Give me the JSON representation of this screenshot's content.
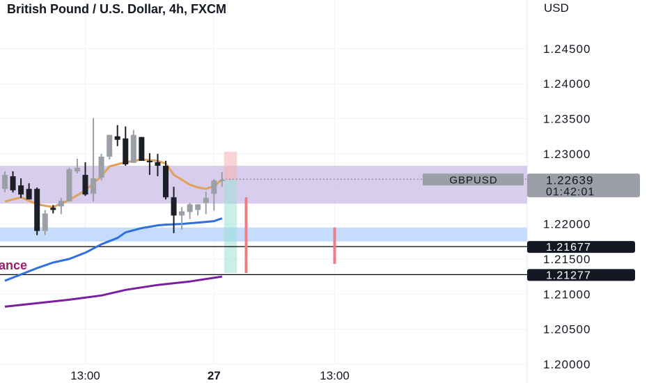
{
  "title": "British Pound / U.S. Dollar, 4h, FXCM",
  "currency": "USD",
  "chart_data": {
    "type": "candlestick",
    "symbol": "GBPUSD",
    "ylim": [
      1.2,
      1.25
    ],
    "y_ticks": [
      "1.24500",
      "1.24000",
      "1.23500",
      "1.23000",
      "1.22000",
      "1.21500",
      "1.21000",
      "1.20500",
      "1.20000"
    ],
    "x_ticks": [
      {
        "label": "13:00",
        "index": 10
      },
      {
        "label": "27",
        "index": 26
      },
      {
        "label": "13:00",
        "index": 41
      }
    ],
    "last_price": {
      "label": "GBPUSD",
      "value": "1.22639",
      "countdown": "01:42:01"
    },
    "horizontal_lines": [
      {
        "value": 1.21677,
        "label": "1.21677"
      },
      {
        "value": 1.21277,
        "label": "1.21277"
      }
    ],
    "zones": [
      {
        "name": "purple-zone",
        "from": 1.2229,
        "to": 1.2283,
        "color": "#d1c4e9"
      },
      {
        "name": "blue-zone",
        "from": 1.2175,
        "to": 1.2195,
        "color": "#bbd6fb"
      }
    ],
    "annotation_text": "ance",
    "candles": [
      {
        "o": 1.225,
        "h": 1.2275,
        "l": 1.2245,
        "c": 1.227
      },
      {
        "o": 1.2268,
        "h": 1.2275,
        "l": 1.2245,
        "c": 1.2248
      },
      {
        "o": 1.2255,
        "h": 1.2265,
        "l": 1.2237,
        "c": 1.2242
      },
      {
        "o": 1.225,
        "h": 1.2258,
        "l": 1.2235,
        "c": 1.2235
      },
      {
        "o": 1.225,
        "h": 1.2252,
        "l": 1.2184,
        "c": 1.219
      },
      {
        "o": 1.219,
        "h": 1.222,
        "l": 1.2184,
        "c": 1.2215
      },
      {
        "o": 1.2223,
        "h": 1.2227,
        "l": 1.2215,
        "c": 1.222
      },
      {
        "o": 1.2225,
        "h": 1.2237,
        "l": 1.2214,
        "c": 1.2233
      },
      {
        "o": 1.2232,
        "h": 1.228,
        "l": 1.2232,
        "c": 1.2278
      },
      {
        "o": 1.2275,
        "h": 1.2293,
        "l": 1.2272,
        "c": 1.228
      },
      {
        "o": 1.227,
        "h": 1.2288,
        "l": 1.224,
        "c": 1.2242
      },
      {
        "o": 1.2243,
        "h": 1.2351,
        "l": 1.2232,
        "c": 1.2265
      },
      {
        "o": 1.2266,
        "h": 1.23,
        "l": 1.2262,
        "c": 1.2296
      },
      {
        "o": 1.2296,
        "h": 1.2327,
        "l": 1.2292,
        "c": 1.2327
      },
      {
        "o": 1.2325,
        "h": 1.2341,
        "l": 1.2311,
        "c": 1.232
      },
      {
        "o": 1.2322,
        "h": 1.2339,
        "l": 1.2283,
        "c": 1.2285
      },
      {
        "o": 1.2287,
        "h": 1.2334,
        "l": 1.2287,
        "c": 1.2327
      },
      {
        "o": 1.2324,
        "h": 1.2324,
        "l": 1.229,
        "c": 1.229
      },
      {
        "o": 1.229,
        "h": 1.2301,
        "l": 1.227,
        "c": 1.2288
      },
      {
        "o": 1.2288,
        "h": 1.23,
        "l": 1.2268,
        "c": 1.2283
      },
      {
        "o": 1.2283,
        "h": 1.229,
        "l": 1.2235,
        "c": 1.2238
      },
      {
        "o": 1.2238,
        "h": 1.2253,
        "l": 1.2187,
        "c": 1.2212
      },
      {
        "o": 1.2212,
        "h": 1.2224,
        "l": 1.2192,
        "c": 1.2218
      },
      {
        "o": 1.2217,
        "h": 1.223,
        "l": 1.2207,
        "c": 1.2228
      },
      {
        "o": 1.222,
        "h": 1.2228,
        "l": 1.2212,
        "c": 1.2228
      },
      {
        "o": 1.223,
        "h": 1.2246,
        "l": 1.2214,
        "c": 1.2237
      },
      {
        "o": 1.2243,
        "h": 1.2264,
        "l": 1.2219,
        "c": 1.2262
      },
      {
        "o": 1.2262,
        "h": 1.2274,
        "l": 1.2253,
        "c": 1.2263
      }
    ],
    "series": [
      {
        "name": "",
        "color": "#e0a15a",
        "points": [
          [
            0,
            1.2232
          ],
          [
            2,
            1.2238
          ],
          [
            4,
            1.2228
          ],
          [
            6,
            1.2224
          ],
          [
            8,
            1.2234
          ],
          [
            10,
            1.2248
          ],
          [
            12,
            1.2268
          ],
          [
            13,
            1.2282
          ],
          [
            15,
            1.2288
          ],
          [
            17,
            1.2292
          ],
          [
            19,
            1.229
          ],
          [
            20,
            1.2286
          ],
          [
            21,
            1.227
          ],
          [
            23,
            1.2256
          ],
          [
            24,
            1.2252
          ],
          [
            25,
            1.225
          ],
          [
            26,
            1.2254
          ],
          [
            27,
            1.2263
          ]
        ]
      },
      {
        "name": "",
        "color": "#2f6fde",
        "points": [
          [
            0,
            1.2119
          ],
          [
            2,
            1.2128
          ],
          [
            4,
            1.2137
          ],
          [
            6,
            1.2145
          ],
          [
            8,
            1.215
          ],
          [
            10,
            1.2159
          ],
          [
            12,
            1.2171
          ],
          [
            14,
            1.218
          ],
          [
            15,
            1.2188
          ],
          [
            17,
            1.2194
          ],
          [
            19,
            1.2198
          ],
          [
            20,
            1.2199
          ],
          [
            22,
            1.22
          ],
          [
            24,
            1.2202
          ],
          [
            26,
            1.2204
          ],
          [
            27,
            1.2208
          ]
        ]
      },
      {
        "name": "",
        "color": "#7b1fa2",
        "points": [
          [
            0,
            1.2082
          ],
          [
            4,
            1.2087
          ],
          [
            8,
            1.2092
          ],
          [
            12,
            1.2098
          ],
          [
            15,
            1.2106
          ],
          [
            19,
            1.2113
          ],
          [
            23,
            1.2118
          ],
          [
            27,
            1.2125
          ]
        ]
      }
    ],
    "position_box": {
      "entry": 1.2263,
      "stop": 1.2303,
      "target": 1.213
    },
    "red_marks": [
      {
        "index": 30,
        "from": 1.2238,
        "to": 1.213
      },
      {
        "index": 41,
        "from": 1.2195,
        "to": 1.2143
      }
    ]
  }
}
